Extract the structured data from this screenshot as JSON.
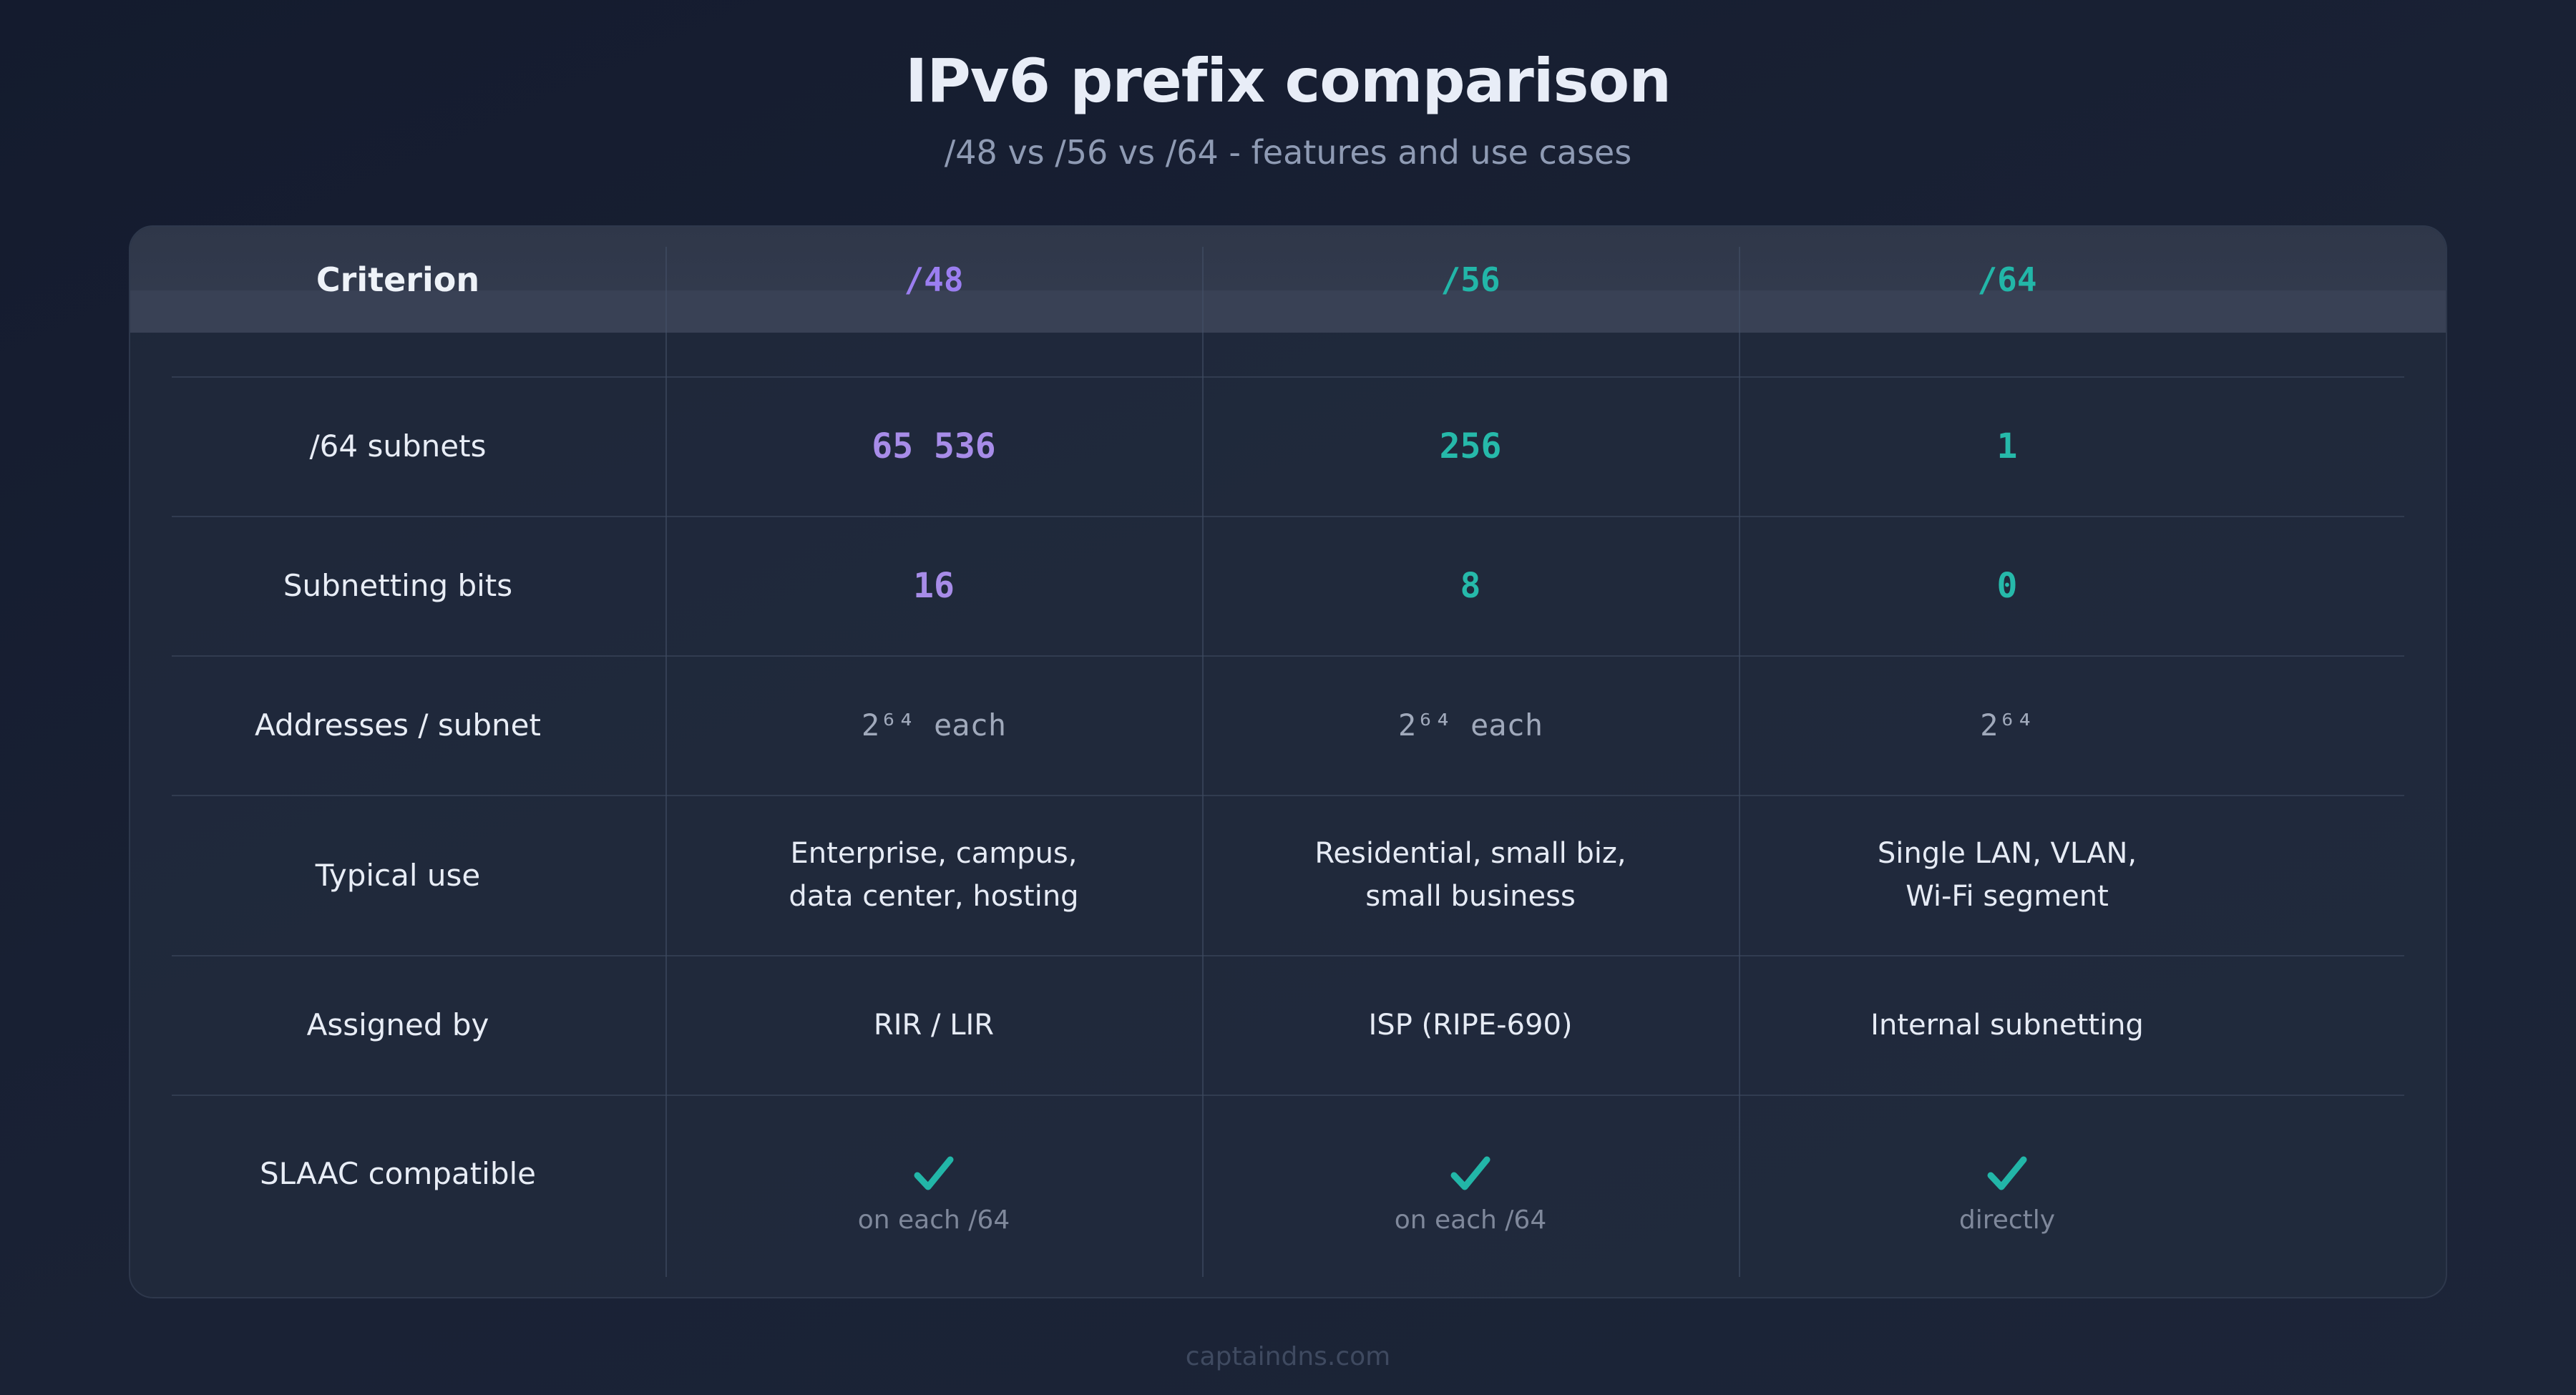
{
  "title": "IPv6 prefix comparison",
  "subtitle": "/48 vs /56 vs /64 - features and use cases",
  "table": {
    "headers": [
      "Criterion",
      "/48",
      "/56",
      "/64"
    ],
    "rows": [
      {
        "label": "/64 subnets",
        "values": [
          "65 536",
          "256",
          "1"
        ]
      },
      {
        "label": "Subnetting bits",
        "values": [
          "16",
          "8",
          "0"
        ]
      },
      {
        "label": "Addresses / subnet",
        "values": [
          "2⁶⁴ each",
          "2⁶⁴ each",
          "2⁶⁴"
        ]
      },
      {
        "label": "Typical use",
        "values": [
          [
            "Enterprise, campus,",
            "data center, hosting"
          ],
          [
            "Residential, small biz,",
            "small business"
          ],
          [
            "Single LAN, VLAN,",
            "Wi-Fi segment"
          ]
        ]
      },
      {
        "label": "Assigned by",
        "values": [
          "RIR / LIR",
          "ISP (RIPE-690)",
          "Internal subnetting"
        ]
      },
      {
        "label": "SLAAC compatible",
        "values": [
          {
            "icon": "checkmark-icon",
            "note": "on each /64"
          },
          {
            "icon": "checkmark-icon",
            "note": "on each /64"
          },
          {
            "icon": "checkmark-icon",
            "note": "directly"
          }
        ]
      }
    ]
  },
  "colors": {
    "purple": "#9b7ef0",
    "teal": "#22b6a8",
    "check": "#22b6a8"
  },
  "footer": "captaindns.com"
}
